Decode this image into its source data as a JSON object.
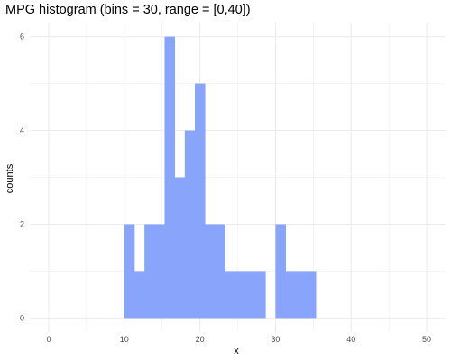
{
  "chart_data": {
    "type": "bar",
    "title": "MPG histogram (bins = 30, range = [0,40])",
    "xlabel": "x",
    "ylabel": "counts",
    "bin_width": 1.3333333,
    "bins": [
      {
        "x0": 10.0,
        "x1": 11.3333,
        "count": 2
      },
      {
        "x0": 11.3333,
        "x1": 12.6667,
        "count": 1
      },
      {
        "x0": 12.6667,
        "x1": 14.0,
        "count": 2
      },
      {
        "x0": 14.0,
        "x1": 15.3333,
        "count": 2
      },
      {
        "x0": 15.3333,
        "x1": 16.6667,
        "count": 6
      },
      {
        "x0": 16.6667,
        "x1": 18.0,
        "count": 3
      },
      {
        "x0": 18.0,
        "x1": 19.3333,
        "count": 4
      },
      {
        "x0": 19.3333,
        "x1": 20.6667,
        "count": 5
      },
      {
        "x0": 20.6667,
        "x1": 22.0,
        "count": 2
      },
      {
        "x0": 22.0,
        "x1": 23.3333,
        "count": 2
      },
      {
        "x0": 23.3333,
        "x1": 24.6667,
        "count": 1
      },
      {
        "x0": 24.6667,
        "x1": 26.0,
        "count": 1
      },
      {
        "x0": 26.0,
        "x1": 27.3333,
        "count": 1
      },
      {
        "x0": 27.3333,
        "x1": 28.6667,
        "count": 1
      },
      {
        "x0": 30.0,
        "x1": 31.3333,
        "count": 2
      },
      {
        "x0": 31.3333,
        "x1": 32.6667,
        "count": 1
      },
      {
        "x0": 32.6667,
        "x1": 34.0,
        "count": 1
      },
      {
        "x0": 34.0,
        "x1": 35.3333,
        "count": 1
      }
    ],
    "xlim": [
      -2.5,
      52.5
    ],
    "ylim": [
      -0.3,
      6.3
    ],
    "x_ticks": [
      0,
      10,
      20,
      30,
      40,
      50
    ],
    "y_ticks": [
      0,
      2,
      4,
      6
    ],
    "grid": true,
    "bar_color": "#88a5fb",
    "grid_color": "#ebebeb"
  }
}
